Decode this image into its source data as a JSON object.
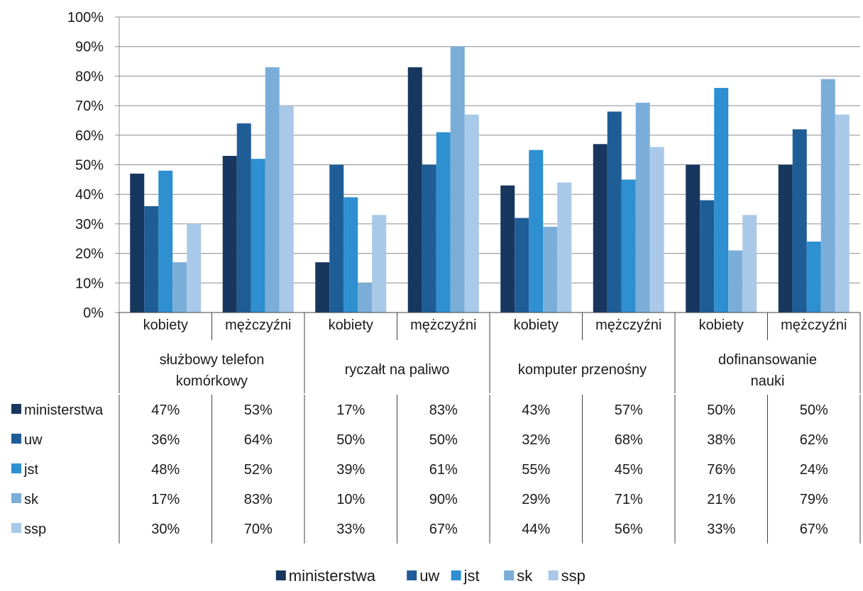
{
  "chart_data": {
    "type": "bar",
    "groups": [
      {
        "label": "służbowy telefon komórkowy",
        "lines": [
          "służbowy telefon",
          "komórkowy"
        ]
      },
      {
        "label": "ryczałt na paliwo",
        "lines": [
          "ryczałt na paliwo"
        ]
      },
      {
        "label": "komputer przenośny",
        "lines": [
          "komputer przenośny"
        ]
      },
      {
        "label": "dofinansowanie nauki",
        "lines": [
          "dofinansowanie",
          "nauki"
        ]
      }
    ],
    "subcategories": [
      "kobiety",
      "mężczyźni"
    ],
    "categories": [
      "kobiety",
      "mężczyźni",
      "kobiety",
      "mężczyźni",
      "kobiety",
      "mężczyźni",
      "kobiety",
      "mężczyźni"
    ],
    "series": [
      {
        "name": "ministerstwa",
        "color": "#17375e",
        "values": [
          47,
          53,
          17,
          83,
          43,
          57,
          50,
          50
        ]
      },
      {
        "name": "uw",
        "color": "#1f5d97",
        "values": [
          36,
          64,
          50,
          50,
          32,
          68,
          38,
          62
        ]
      },
      {
        "name": "jst",
        "color": "#2e8fd1",
        "values": [
          48,
          52,
          39,
          61,
          55,
          45,
          76,
          24
        ]
      },
      {
        "name": "sk",
        "color": "#7aaed9",
        "values": [
          17,
          83,
          10,
          90,
          29,
          71,
          21,
          79
        ]
      },
      {
        "name": "ssp",
        "color": "#a9c9e8",
        "values": [
          30,
          70,
          33,
          67,
          44,
          56,
          33,
          67
        ]
      }
    ],
    "y_ticks": [
      "0%",
      "10%",
      "20%",
      "30%",
      "40%",
      "50%",
      "60%",
      "70%",
      "80%",
      "90%",
      "100%"
    ],
    "ylim": [
      0,
      100
    ],
    "grid": true,
    "legend": "bottom-center",
    "data_table": true
  }
}
